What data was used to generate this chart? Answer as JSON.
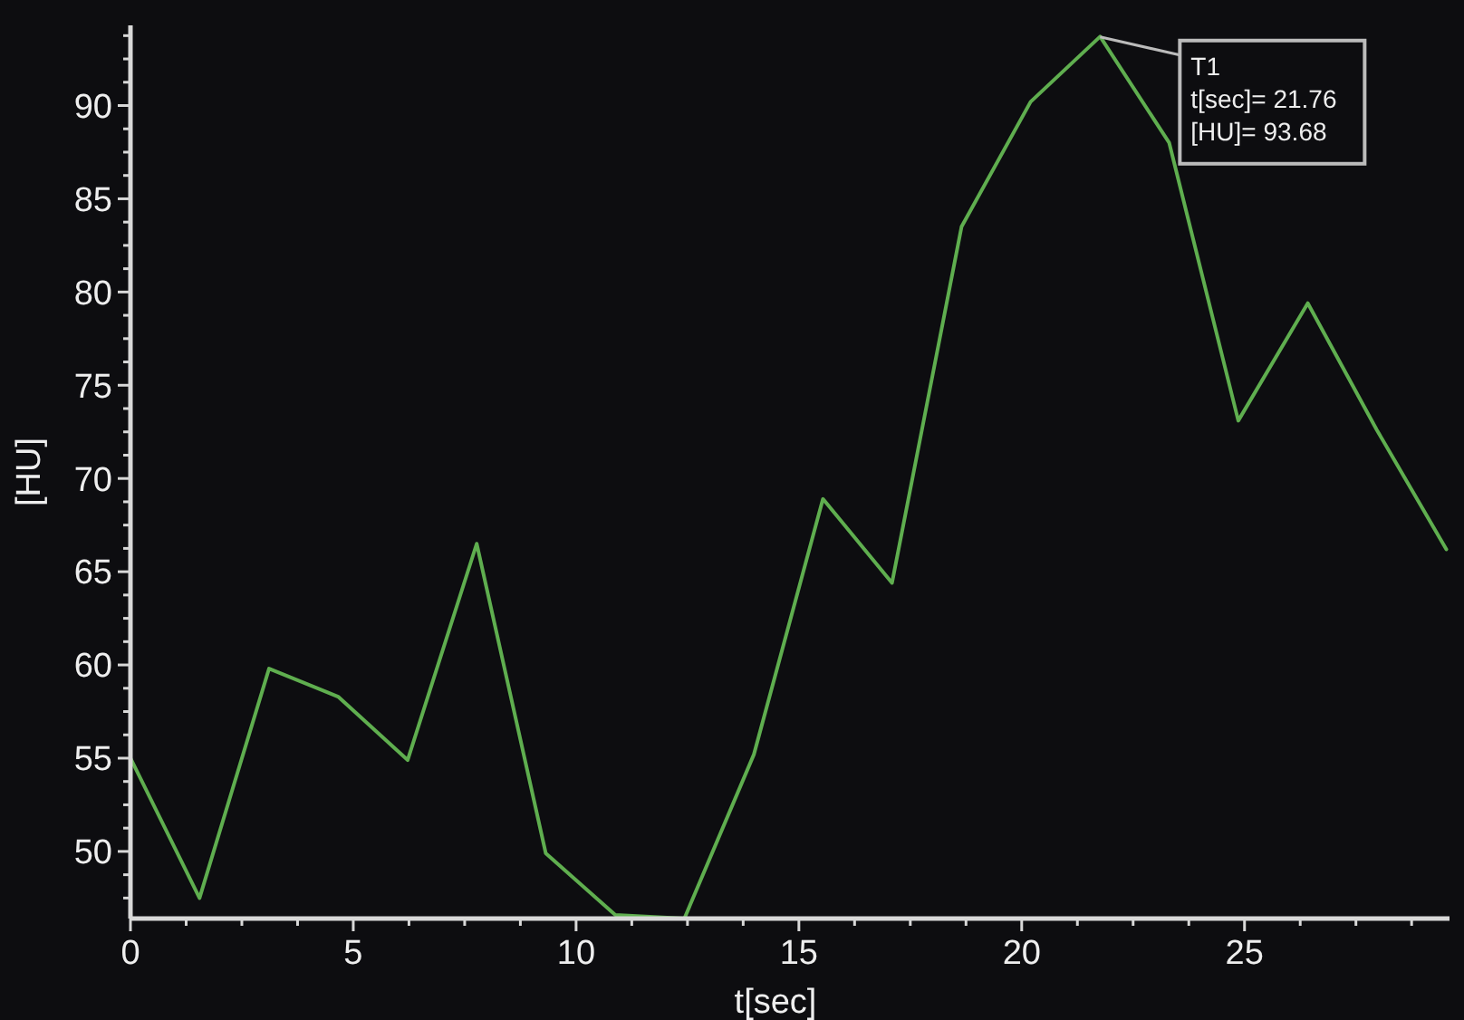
{
  "chart_data": {
    "type": "line",
    "xlabel": "t[sec]",
    "ylabel": "[HU]",
    "x": [
      0,
      1.55,
      3.11,
      4.66,
      6.22,
      7.77,
      9.32,
      10.88,
      12.43,
      13.99,
      15.54,
      17.09,
      18.65,
      20.2,
      21.76,
      23.31,
      24.86,
      26.42,
      27.97,
      29.53
    ],
    "series": [
      {
        "color": "#5fae4f",
        "values": [
          55.0,
          47.5,
          59.8,
          58.3,
          54.9,
          66.5,
          49.9,
          46.6,
          46.4,
          55.2,
          68.9,
          64.4,
          83.5,
          90.2,
          93.7,
          88.0,
          73.1,
          79.4,
          72.6,
          66.2
        ]
      }
    ],
    "xlim": [
      0,
      29.6
    ],
    "ylim": [
      46.4,
      94.3
    ],
    "xticks": [
      0,
      {
        "value": 1.25,
        "label": null
      },
      {
        "value": 2.5,
        "label": null
      },
      {
        "value": 3.75,
        "label": null
      },
      5,
      {
        "value": 6.25,
        "label": null
      },
      {
        "value": 7.5,
        "label": null
      },
      {
        "value": 8.75,
        "label": null
      },
      10,
      {
        "value": 11.25,
        "label": null
      },
      {
        "value": 12.5,
        "label": null
      },
      {
        "value": 13.75,
        "label": null
      },
      15,
      {
        "value": 16.25,
        "label": null
      },
      {
        "value": 17.5,
        "label": null
      },
      {
        "value": 18.75,
        "label": null
      },
      20,
      {
        "value": 21.25,
        "label": null
      },
      {
        "value": 22.5,
        "label": null
      },
      {
        "value": 23.75,
        "label": null
      },
      25,
      {
        "value": 26.25,
        "label": null
      },
      {
        "value": 27.5,
        "label": null
      },
      {
        "value": 28.75,
        "label": null
      }
    ],
    "yticks": [
      {
        "value": 47.5,
        "label": null
      },
      {
        "value": 48.75,
        "label": null
      },
      50,
      {
        "value": 51.25,
        "label": null
      },
      {
        "value": 52.5,
        "label": null
      },
      {
        "value": 53.75,
        "label": null
      },
      55,
      {
        "value": 56.25,
        "label": null
      },
      {
        "value": 57.5,
        "label": null
      },
      {
        "value": 58.75,
        "label": null
      },
      60,
      {
        "value": 61.25,
        "label": null
      },
      {
        "value": 62.5,
        "label": null
      },
      {
        "value": 63.75,
        "label": null
      },
      65,
      {
        "value": 66.25,
        "label": null
      },
      {
        "value": 67.5,
        "label": null
      },
      {
        "value": 68.75,
        "label": null
      },
      70,
      {
        "value": 71.25,
        "label": null
      },
      {
        "value": 72.5,
        "label": null
      },
      {
        "value": 73.75,
        "label": null
      },
      75,
      {
        "value": 76.25,
        "label": null
      },
      {
        "value": 77.5,
        "label": null
      },
      {
        "value": 78.75,
        "label": null
      },
      80,
      {
        "value": 81.25,
        "label": null
      },
      {
        "value": 82.5,
        "label": null
      },
      {
        "value": 83.75,
        "label": null
      },
      85,
      {
        "value": 86.25,
        "label": null
      },
      {
        "value": 87.5,
        "label": null
      },
      {
        "value": 88.75,
        "label": null
      },
      90,
      {
        "value": 91.25,
        "label": null
      },
      {
        "value": 92.5,
        "label": null
      },
      {
        "value": 93.75,
        "label": null
      }
    ],
    "annotations": [
      {
        "text": "T1\nt[sec]= 21.76\n[HU]= 93.68",
        "x": 21.76,
        "y": 93.68
      }
    ],
    "grid": false,
    "marker": "none",
    "line_style": "solid"
  }
}
